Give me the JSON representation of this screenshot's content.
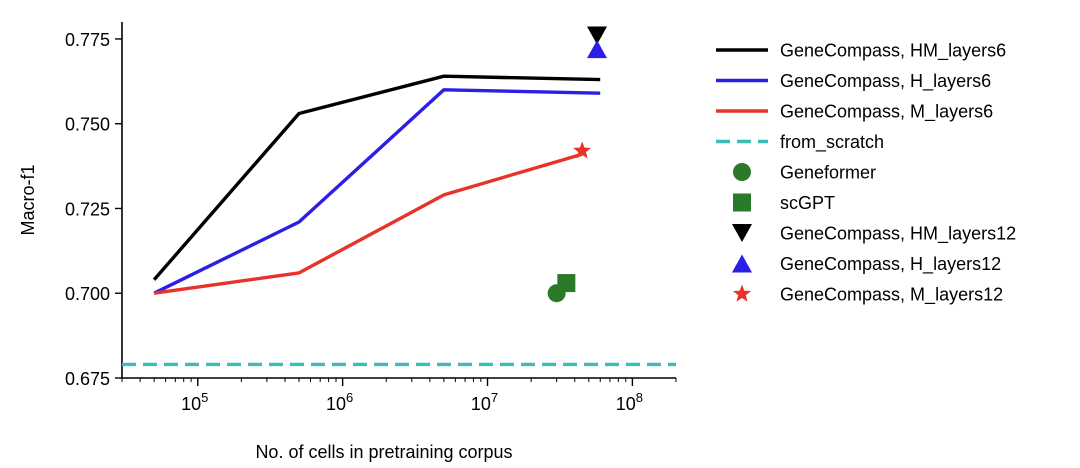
{
  "chart_data": {
    "type": "line",
    "title": "",
    "xlabel": "No. of cells in pretraining corpus",
    "ylabel": "Macro-f1",
    "xscale": "log",
    "xlim": [
      30000,
      200000000
    ],
    "ylim": [
      0.675,
      0.78
    ],
    "x_ticks": [
      {
        "value": 100000,
        "base": "10",
        "exp": "5"
      },
      {
        "value": 1000000,
        "base": "10",
        "exp": "6"
      },
      {
        "value": 10000000,
        "base": "10",
        "exp": "7"
      },
      {
        "value": 100000000,
        "base": "10",
        "exp": "8"
      }
    ],
    "y_ticks": [
      0.675,
      0.7,
      0.725,
      0.75,
      0.775
    ],
    "y_tick_labels": [
      "0.675",
      "0.700",
      "0.725",
      "0.750",
      "0.775"
    ],
    "grid": false,
    "legend_position": "right",
    "series": [
      {
        "name": "GeneCompass, HM_layers6",
        "kind": "line",
        "color": "#000000",
        "dash": "solid",
        "x": [
          50000,
          500000,
          5000000,
          60000000
        ],
        "y": [
          0.704,
          0.753,
          0.764,
          0.763
        ]
      },
      {
        "name": "GeneCompass, H_layers6",
        "kind": "line",
        "color": "#2b1ee6",
        "dash": "solid",
        "x": [
          50000,
          500000,
          5000000,
          60000000
        ],
        "y": [
          0.7,
          0.721,
          0.76,
          0.759
        ]
      },
      {
        "name": "GeneCompass, M_layers6",
        "kind": "line",
        "color": "#e8322a",
        "dash": "solid",
        "x": [
          50000,
          500000,
          5000000,
          45000000
        ],
        "y": [
          0.7,
          0.706,
          0.729,
          0.741
        ]
      },
      {
        "name": "from_scratch",
        "kind": "hline",
        "color": "#3dbdb9",
        "dash": "dashed",
        "y": 0.679
      },
      {
        "name": "Geneformer",
        "kind": "marker",
        "marker": "circle",
        "color": "#2a7a2a",
        "x": [
          30000000
        ],
        "y": [
          0.7
        ]
      },
      {
        "name": "scGPT",
        "kind": "marker",
        "marker": "square",
        "color": "#2a7a2a",
        "x": [
          35000000
        ],
        "y": [
          0.703
        ]
      },
      {
        "name": "GeneCompass, HM_layers12",
        "kind": "marker",
        "marker": "triangle-down",
        "color": "#000000",
        "x": [
          57000000
        ],
        "y": [
          0.776
        ]
      },
      {
        "name": "GeneCompass, H_layers12",
        "kind": "marker",
        "marker": "triangle-up",
        "color": "#2b1ee6",
        "x": [
          57000000
        ],
        "y": [
          0.772
        ]
      },
      {
        "name": "GeneCompass, M_layers12",
        "kind": "marker",
        "marker": "star",
        "color": "#e8322a",
        "x": [
          45000000
        ],
        "y": [
          0.742
        ]
      }
    ]
  }
}
